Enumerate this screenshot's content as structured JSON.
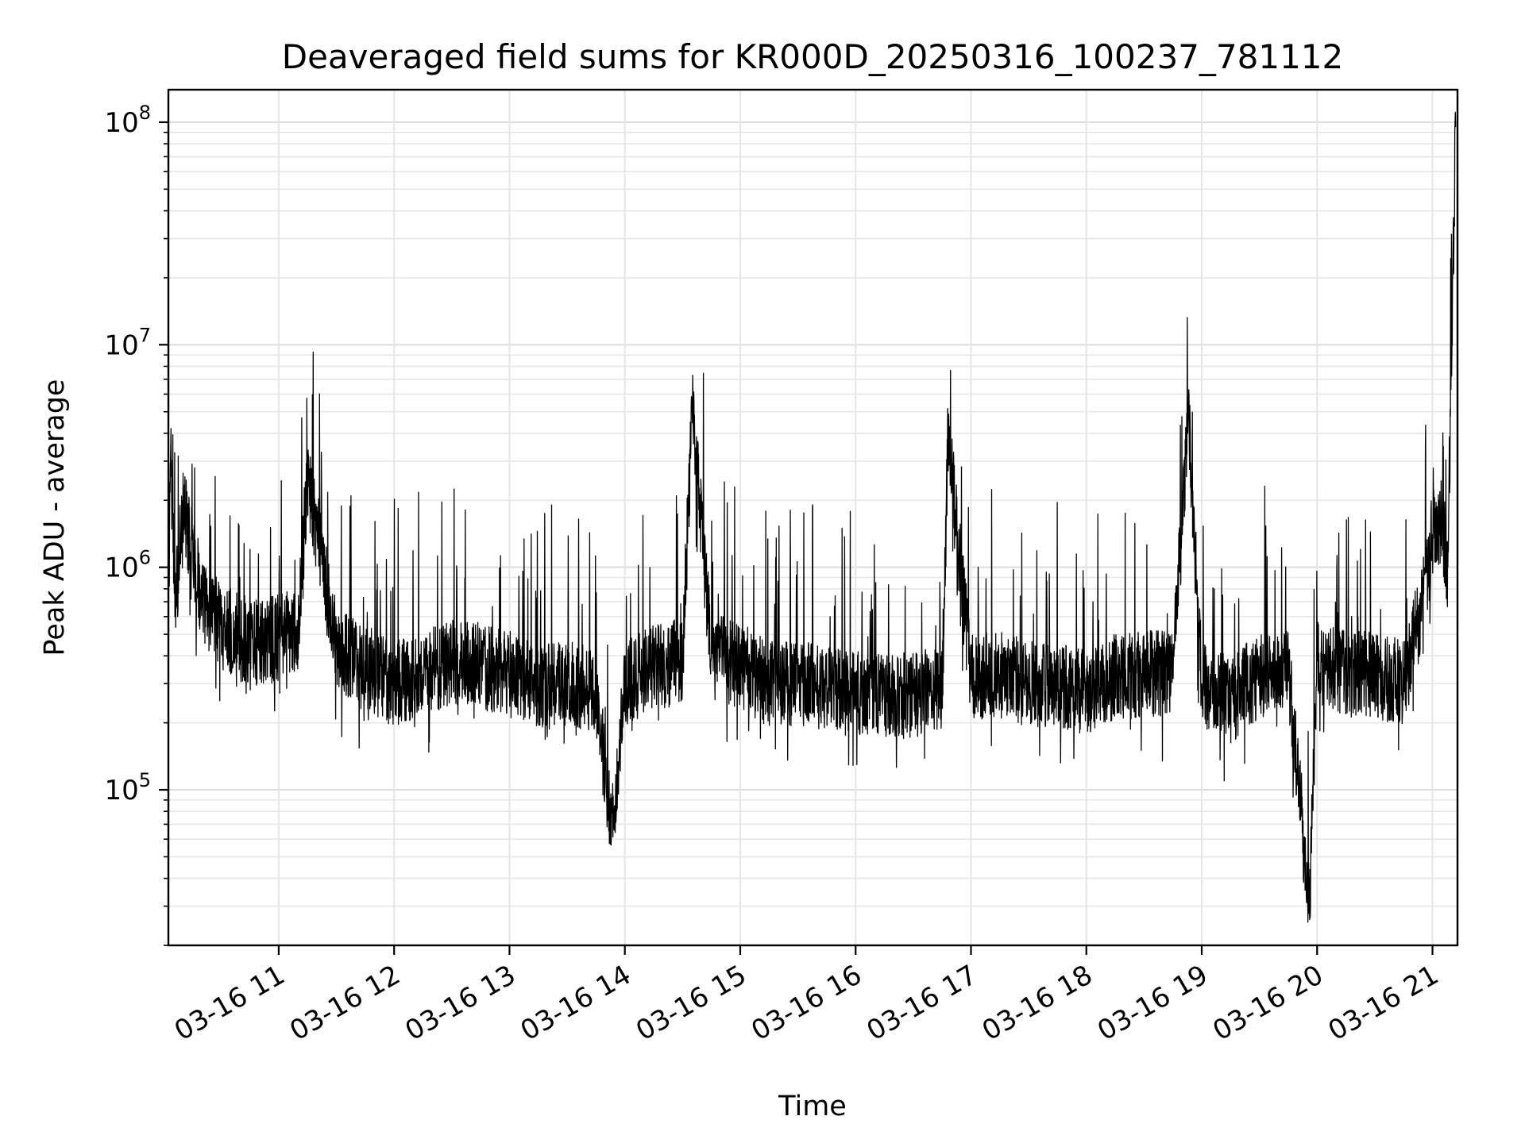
{
  "chart_data": {
    "type": "line",
    "title": "Deaveraged field sums for KR000D_20250316_100237_781112",
    "xlabel": "Time",
    "ylabel": "Peak ADU - average",
    "y_scale": "log",
    "ylim": [
      20000,
      140000000
    ],
    "xlim": [
      "2025-03-16 10:02:37",
      "2025-03-16 21:13:00"
    ],
    "grid": true,
    "line_color": "#000000",
    "x_ticks": [
      "2025-03-16 11:00",
      "2025-03-16 12:00",
      "2025-03-16 13:00",
      "2025-03-16 14:00",
      "2025-03-16 15:00",
      "2025-03-16 16:00",
      "2025-03-16 17:00",
      "2025-03-16 18:00",
      "2025-03-16 19:00",
      "2025-03-16 20:00",
      "2025-03-16 21:00"
    ],
    "x_tick_labels": [
      "03-16 11",
      "03-16 12",
      "03-16 13",
      "03-16 14",
      "03-16 15",
      "03-16 16",
      "03-16 17",
      "03-16 18",
      "03-16 19",
      "03-16 20",
      "03-16 21"
    ],
    "y_ticks": [
      100000,
      1000000,
      10000000,
      100000000
    ],
    "y_tick_labels": [
      {
        "base": "10",
        "exp": "5"
      },
      {
        "base": "10",
        "exp": "6"
      },
      {
        "base": "10",
        "exp": "7"
      },
      {
        "base": "10",
        "exp": "8"
      }
    ],
    "series": [
      {
        "points": [
          [
            "2025-03-16 10:03",
            900000
          ],
          [
            "2025-03-16 10:04",
            4200000
          ],
          [
            "2025-03-16 10:06",
            600000
          ],
          [
            "2025-03-16 10:10",
            2000000
          ],
          [
            "2025-03-16 10:20",
            700000
          ],
          [
            "2025-03-16 10:30",
            550000
          ],
          [
            "2025-03-16 10:40",
            480000
          ],
          [
            "2025-03-16 10:50",
            460000
          ],
          [
            "2025-03-16 11:00",
            480000
          ],
          [
            "2025-03-16 11:10",
            520000
          ],
          [
            "2025-03-16 11:15",
            2600000
          ],
          [
            "2025-03-16 11:30",
            430000
          ],
          [
            "2025-03-16 11:45",
            350000
          ],
          [
            "2025-03-16 12:00",
            300000
          ],
          [
            "2025-03-16 12:15",
            330000
          ],
          [
            "2025-03-16 12:30",
            380000
          ],
          [
            "2025-03-16 12:45",
            360000
          ],
          [
            "2025-03-16 13:00",
            330000
          ],
          [
            "2025-03-16 13:15",
            290000
          ],
          [
            "2025-03-16 13:30",
            300000
          ],
          [
            "2025-03-16 13:45",
            280000
          ],
          [
            "2025-03-16 13:53",
            65000
          ],
          [
            "2025-03-16 14:00",
            300000
          ],
          [
            "2025-03-16 14:15",
            350000
          ],
          [
            "2025-03-16 14:30",
            380000
          ],
          [
            "2025-03-16 14:35",
            5200000
          ],
          [
            "2025-03-16 14:45",
            400000
          ],
          [
            "2025-03-16 15:00",
            360000
          ],
          [
            "2025-03-16 15:15",
            300000
          ],
          [
            "2025-03-16 15:30",
            300000
          ],
          [
            "2025-03-16 15:45",
            280000
          ],
          [
            "2025-03-16 16:00",
            270000
          ],
          [
            "2025-03-16 16:15",
            260000
          ],
          [
            "2025-03-16 16:30",
            270000
          ],
          [
            "2025-03-16 16:45",
            280000
          ],
          [
            "2025-03-16 16:48",
            3900000
          ],
          [
            "2025-03-16 17:00",
            320000
          ],
          [
            "2025-03-16 17:15",
            330000
          ],
          [
            "2025-03-16 17:30",
            300000
          ],
          [
            "2025-03-16 17:45",
            290000
          ],
          [
            "2025-03-16 18:00",
            280000
          ],
          [
            "2025-03-16 18:15",
            320000
          ],
          [
            "2025-03-16 18:30",
            330000
          ],
          [
            "2025-03-16 18:45",
            340000
          ],
          [
            "2025-03-16 18:53",
            4800000
          ],
          [
            "2025-03-16 19:00",
            300000
          ],
          [
            "2025-03-16 19:15",
            250000
          ],
          [
            "2025-03-16 19:30",
            330000
          ],
          [
            "2025-03-16 19:45",
            360000
          ],
          [
            "2025-03-16 19:56",
            30000
          ],
          [
            "2025-03-16 20:00",
            380000
          ],
          [
            "2025-03-16 20:15",
            330000
          ],
          [
            "2025-03-16 20:30",
            330000
          ],
          [
            "2025-03-16 20:45",
            300000
          ],
          [
            "2025-03-16 20:55",
            700000
          ],
          [
            "2025-03-16 21:00",
            1400000
          ],
          [
            "2025-03-16 21:05",
            1600000
          ],
          [
            "2025-03-16 21:08",
            1000000
          ],
          [
            "2025-03-16 21:12",
            95000000
          ]
        ]
      }
    ]
  }
}
